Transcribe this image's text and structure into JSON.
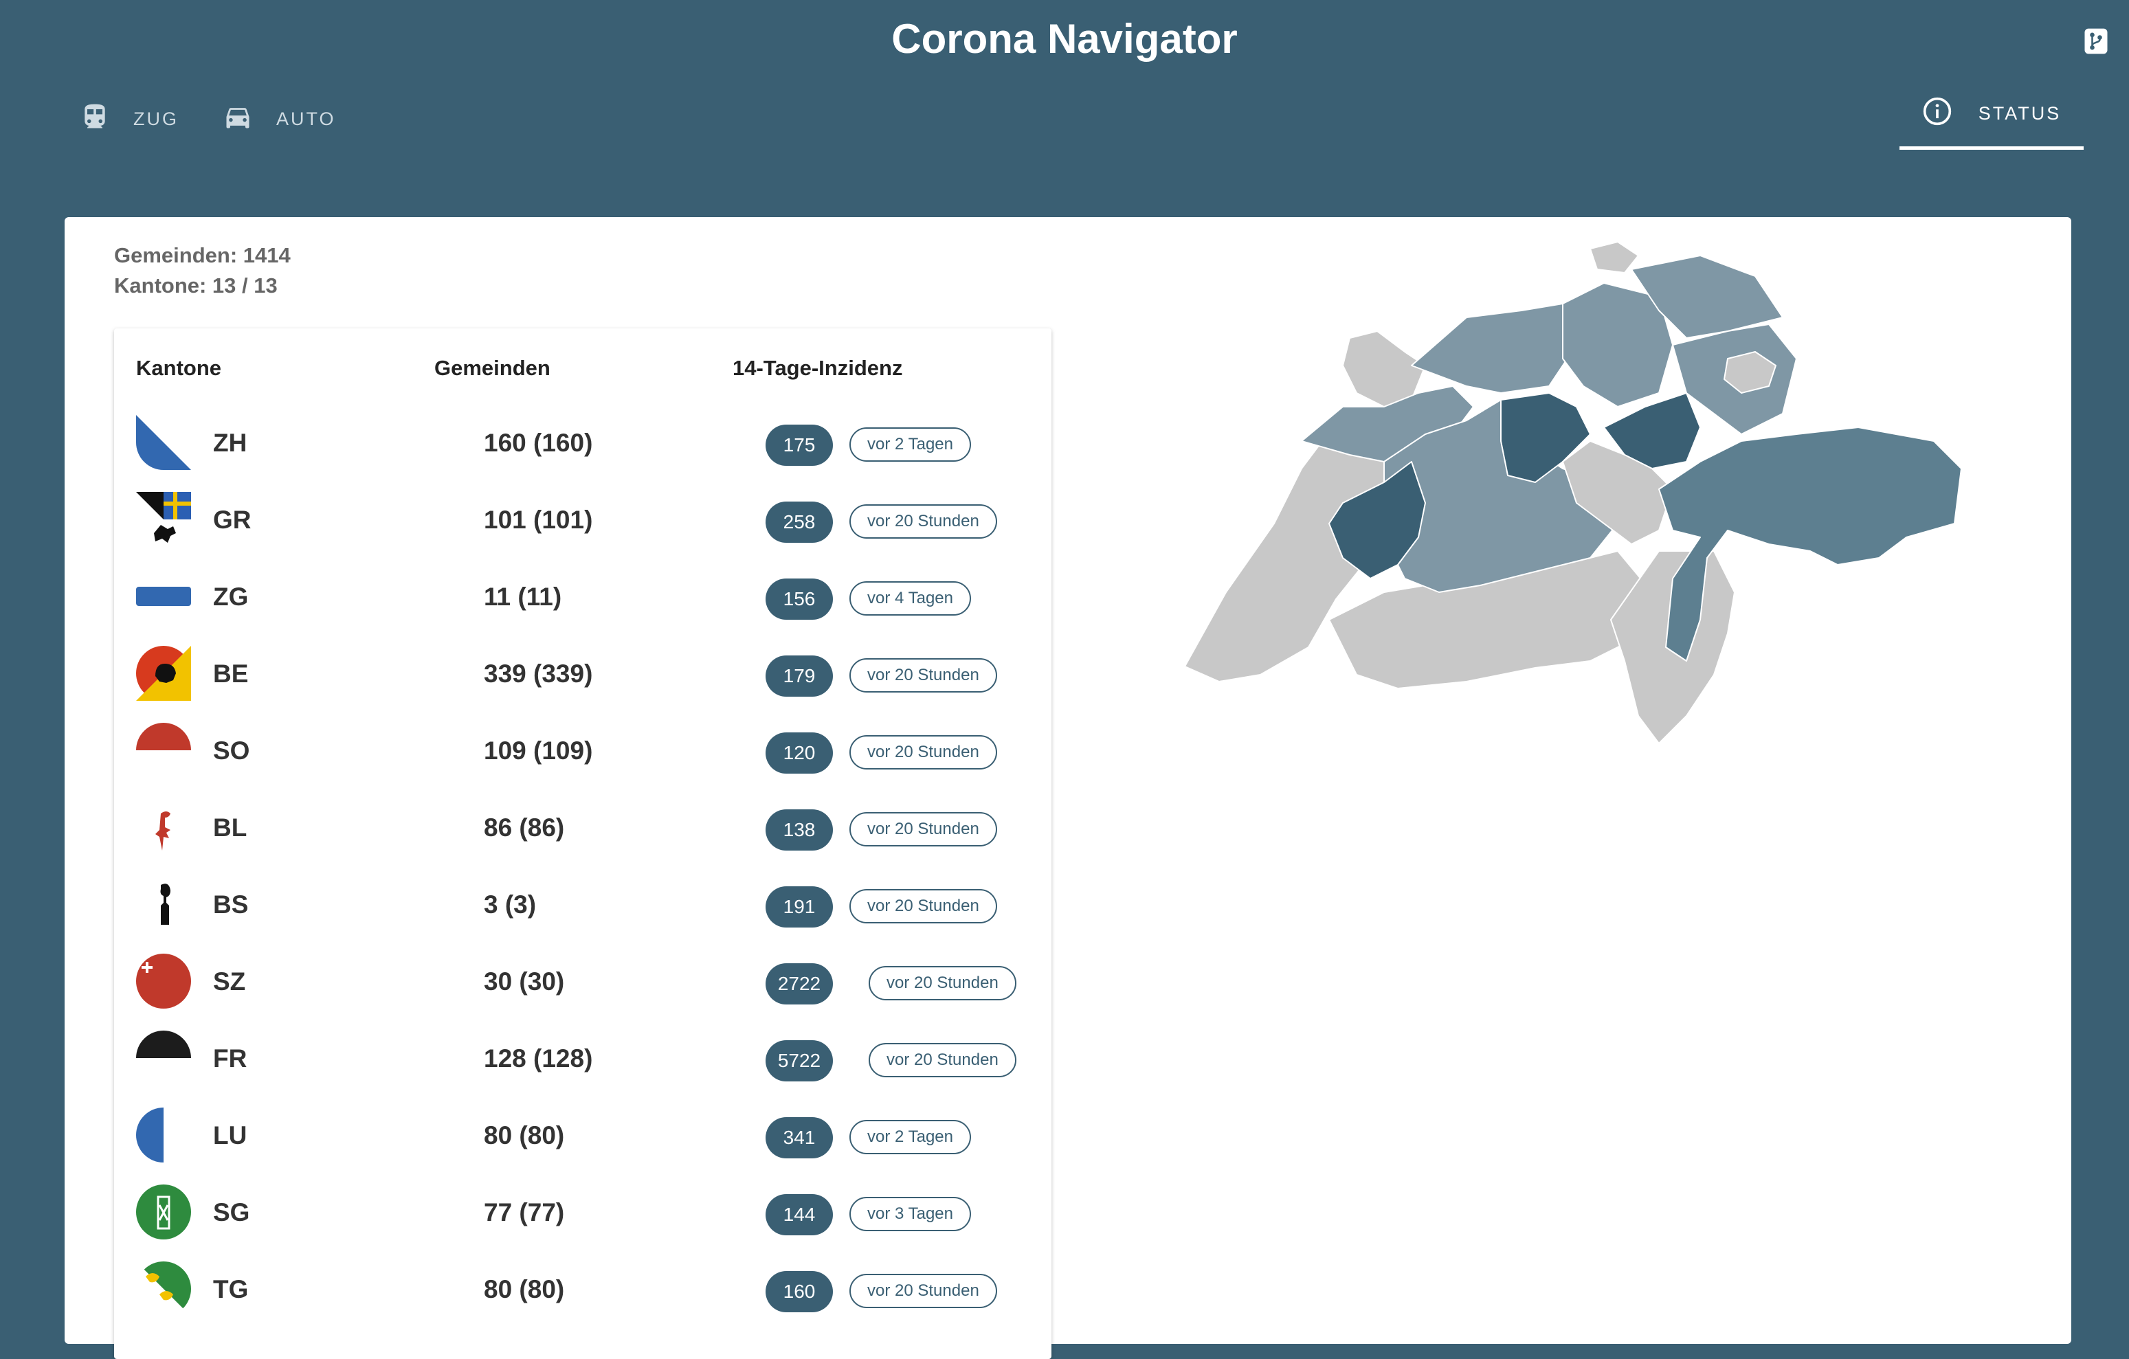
{
  "header": {
    "title": "Corona Navigator",
    "repo_icon": "git-branch-icon"
  },
  "tabs": [
    {
      "label": "ZUG",
      "icon": "train-icon",
      "active": false
    },
    {
      "label": "AUTO",
      "icon": "car-icon",
      "active": false
    },
    {
      "label": "STATUS",
      "icon": "info-icon",
      "active": true
    }
  ],
  "summary": {
    "gemeinden": "Gemeinden: 1414",
    "kantone": "Kantone: 13 / 13"
  },
  "table": {
    "headers": [
      "Kantone",
      "Gemeinden",
      "14-Tage-Inzidenz"
    ],
    "rows": [
      {
        "code": "ZH",
        "count": "160 (160)",
        "incidence": "175",
        "updated": "vor 2 Tagen",
        "flag": "zh"
      },
      {
        "code": "GR",
        "count": "101 (101)",
        "incidence": "258",
        "updated": "vor 20 Stunden",
        "flag": "gr"
      },
      {
        "code": "ZG",
        "count": "11 (11)",
        "incidence": "156",
        "updated": "vor 4 Tagen",
        "flag": "zg"
      },
      {
        "code": "BE",
        "count": "339 (339)",
        "incidence": "179",
        "updated": "vor 20 Stunden",
        "flag": "be"
      },
      {
        "code": "SO",
        "count": "109 (109)",
        "incidence": "120",
        "updated": "vor 20 Stunden",
        "flag": "so"
      },
      {
        "code": "BL",
        "count": "86 (86)",
        "incidence": "138",
        "updated": "vor 20 Stunden",
        "flag": "bl"
      },
      {
        "code": "BS",
        "count": "3 (3)",
        "incidence": "191",
        "updated": "vor 20 Stunden",
        "flag": "bs"
      },
      {
        "code": "SZ",
        "count": "30 (30)",
        "incidence": "2722",
        "updated": "vor 20 Stunden",
        "flag": "sz"
      },
      {
        "code": "FR",
        "count": "128 (128)",
        "incidence": "5722",
        "updated": "vor 20 Stunden",
        "flag": "fr"
      },
      {
        "code": "LU",
        "count": "80 (80)",
        "incidence": "341",
        "updated": "vor 2 Tagen",
        "flag": "lu"
      },
      {
        "code": "SG",
        "count": "77 (77)",
        "incidence": "144",
        "updated": "vor 3 Tagen",
        "flag": "sg"
      },
      {
        "code": "TG",
        "count": "80 (80)",
        "incidence": "160",
        "updated": "vor 20 Stunden",
        "flag": "tg"
      }
    ]
  },
  "map": {
    "name": "switzerland-municipality-map",
    "colors": {
      "high": "#3a5f73",
      "mid": "#5d7f90",
      "low": "#7f97a5",
      "none": "#c8c8c8"
    }
  },
  "colors": {
    "header_bg": "#3a5f73",
    "badge_bg": "#3a5f73",
    "card_bg": "#ffffff"
  }
}
